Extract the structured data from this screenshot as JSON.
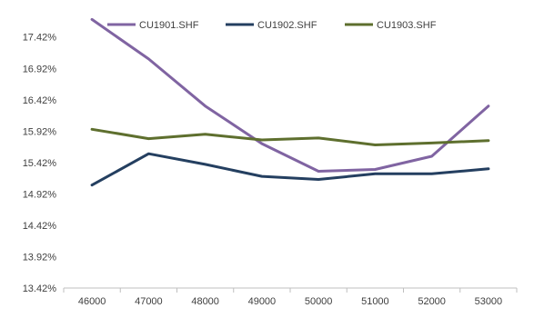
{
  "chart_data": {
    "type": "line",
    "title": "",
    "xlabel": "",
    "ylabel": "",
    "x": [
      46000,
      47000,
      48000,
      49000,
      50000,
      51000,
      52000,
      53000
    ],
    "x_tick_labels": [
      "46000",
      "47000",
      "48000",
      "49000",
      "50000",
      "51000",
      "52000",
      "53000"
    ],
    "y_ticks": [
      13.42,
      13.92,
      14.42,
      14.92,
      15.42,
      15.92,
      16.42,
      16.92,
      17.42
    ],
    "y_tick_labels": [
      "13.42%",
      "13.92%",
      "14.42%",
      "14.92%",
      "15.42%",
      "15.92%",
      "16.42%",
      "16.92%",
      "17.42%"
    ],
    "ylim": [
      13.42,
      17.72
    ],
    "grid": false,
    "legend_position": "top",
    "series": [
      {
        "name": "CU1901.SHF",
        "color": "#8064a2",
        "values": [
          17.7,
          17.07,
          16.32,
          15.72,
          15.28,
          15.31,
          15.52,
          16.32
        ]
      },
      {
        "name": "CU1902.SHF",
        "color": "#243f60",
        "values": [
          15.06,
          15.56,
          15.39,
          15.2,
          15.15,
          15.24,
          15.24,
          15.32
        ]
      },
      {
        "name": "CU1903.SHF",
        "color": "#5e6f2e",
        "values": [
          15.95,
          15.8,
          15.87,
          15.78,
          15.81,
          15.7,
          15.73,
          15.77
        ]
      }
    ]
  }
}
